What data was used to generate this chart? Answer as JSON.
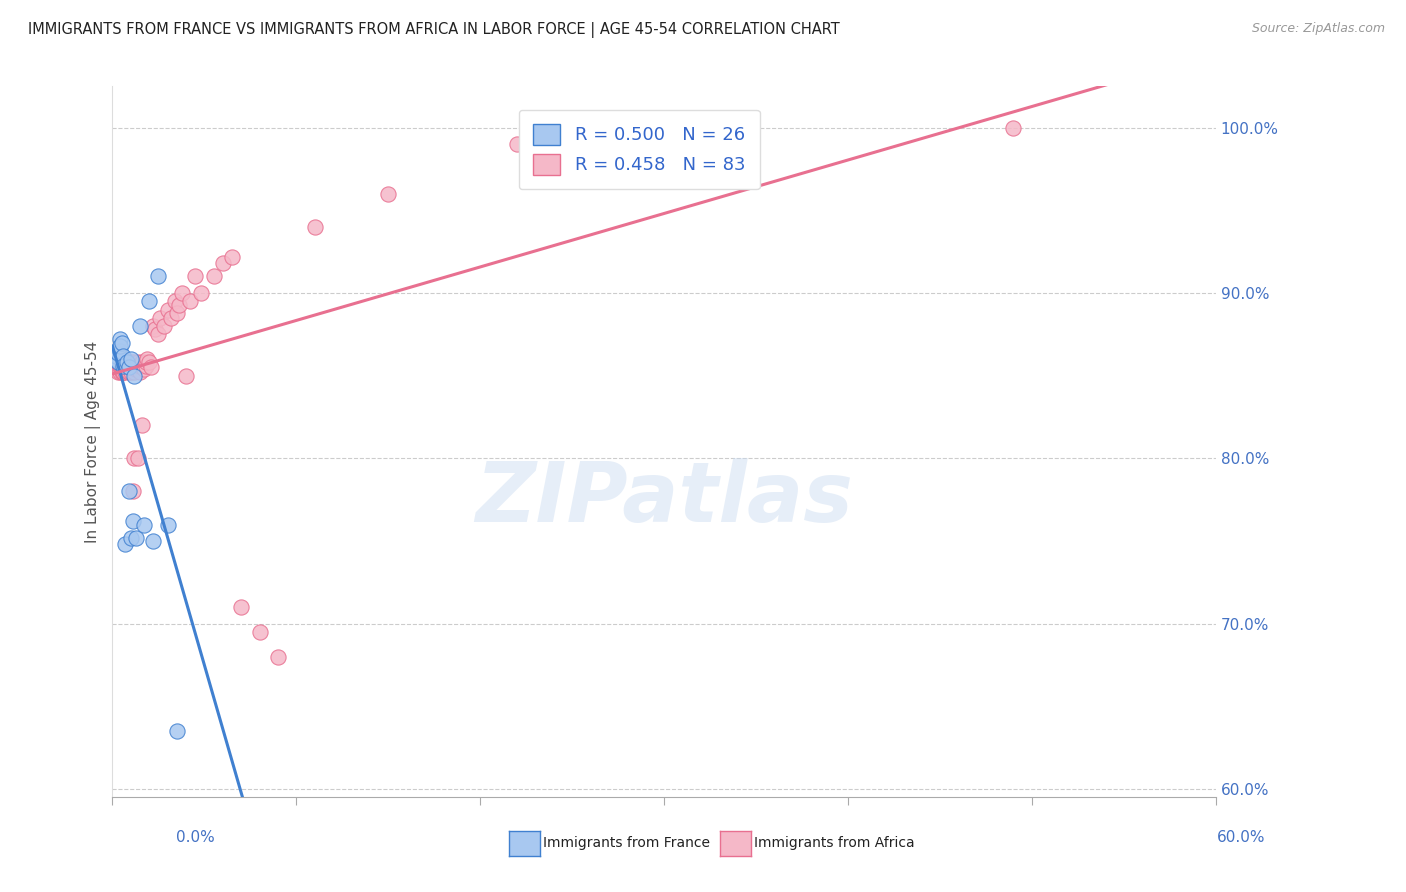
{
  "title": "IMMIGRANTS FROM FRANCE VS IMMIGRANTS FROM AFRICA IN LABOR FORCE | AGE 45-54 CORRELATION CHART",
  "source": "Source: ZipAtlas.com",
  "ylabel": "In Labor Force | Age 45-54",
  "right_yticks": [
    60.0,
    70.0,
    80.0,
    90.0,
    100.0
  ],
  "xlim": [
    0.0,
    0.6
  ],
  "ylim": [
    0.595,
    1.025
  ],
  "france_R": 0.5,
  "france_N": 26,
  "africa_R": 0.458,
  "africa_N": 83,
  "france_color": "#A8C8F0",
  "africa_color": "#F5B8C8",
  "france_line_color": "#4080D0",
  "africa_line_color": "#E87090",
  "france_x": [
    0.001,
    0.002,
    0.003,
    0.003,
    0.004,
    0.004,
    0.004,
    0.005,
    0.006,
    0.006,
    0.007,
    0.008,
    0.009,
    0.009,
    0.01,
    0.01,
    0.011,
    0.012,
    0.013,
    0.015,
    0.017,
    0.02,
    0.022,
    0.025,
    0.03,
    0.035
  ],
  "france_y": [
    0.86,
    0.862,
    0.858,
    0.864,
    0.872,
    0.865,
    0.868,
    0.87,
    0.862,
    0.856,
    0.748,
    0.858,
    0.855,
    0.78,
    0.752,
    0.86,
    0.762,
    0.85,
    0.752,
    0.88,
    0.76,
    0.895,
    0.75,
    0.91,
    0.76,
    0.635
  ],
  "africa_x": [
    0.001,
    0.001,
    0.002,
    0.002,
    0.003,
    0.003,
    0.003,
    0.003,
    0.004,
    0.004,
    0.004,
    0.004,
    0.005,
    0.005,
    0.005,
    0.005,
    0.006,
    0.006,
    0.006,
    0.006,
    0.006,
    0.007,
    0.007,
    0.007,
    0.007,
    0.007,
    0.008,
    0.008,
    0.008,
    0.008,
    0.009,
    0.009,
    0.009,
    0.01,
    0.01,
    0.01,
    0.01,
    0.011,
    0.011,
    0.011,
    0.012,
    0.012,
    0.012,
    0.012,
    0.013,
    0.013,
    0.014,
    0.014,
    0.015,
    0.015,
    0.016,
    0.016,
    0.017,
    0.018,
    0.018,
    0.019,
    0.02,
    0.021,
    0.022,
    0.023,
    0.025,
    0.026,
    0.028,
    0.03,
    0.032,
    0.034,
    0.035,
    0.036,
    0.038,
    0.04,
    0.042,
    0.045,
    0.048,
    0.055,
    0.06,
    0.065,
    0.07,
    0.08,
    0.09,
    0.11,
    0.15,
    0.22,
    0.49
  ],
  "africa_y": [
    0.856,
    0.854,
    0.856,
    0.858,
    0.854,
    0.856,
    0.858,
    0.852,
    0.854,
    0.852,
    0.856,
    0.858,
    0.852,
    0.854,
    0.856,
    0.858,
    0.852,
    0.854,
    0.856,
    0.858,
    0.852,
    0.854,
    0.856,
    0.858,
    0.852,
    0.86,
    0.855,
    0.857,
    0.853,
    0.856,
    0.852,
    0.856,
    0.858,
    0.854,
    0.856,
    0.858,
    0.852,
    0.854,
    0.856,
    0.78,
    0.852,
    0.856,
    0.858,
    0.8,
    0.854,
    0.856,
    0.858,
    0.8,
    0.852,
    0.856,
    0.858,
    0.82,
    0.854,
    0.856,
    0.858,
    0.86,
    0.858,
    0.855,
    0.88,
    0.878,
    0.875,
    0.885,
    0.88,
    0.89,
    0.885,
    0.895,
    0.888,
    0.893,
    0.9,
    0.85,
    0.895,
    0.91,
    0.9,
    0.91,
    0.918,
    0.922,
    0.71,
    0.695,
    0.68,
    0.94,
    0.96,
    0.99,
    1.0
  ],
  "france_trend_x": [
    0.0,
    0.6
  ],
  "africa_trend_x": [
    0.0,
    0.6
  ],
  "watermark_text": "ZIPatlas",
  "watermark_color": "#c8daf0",
  "legend_france_label": "R = 0.500   N = 26",
  "legend_africa_label": "R = 0.458   N = 83",
  "bottom_legend_france": "Immigrants from France",
  "bottom_legend_africa": "Immigrants from Africa"
}
